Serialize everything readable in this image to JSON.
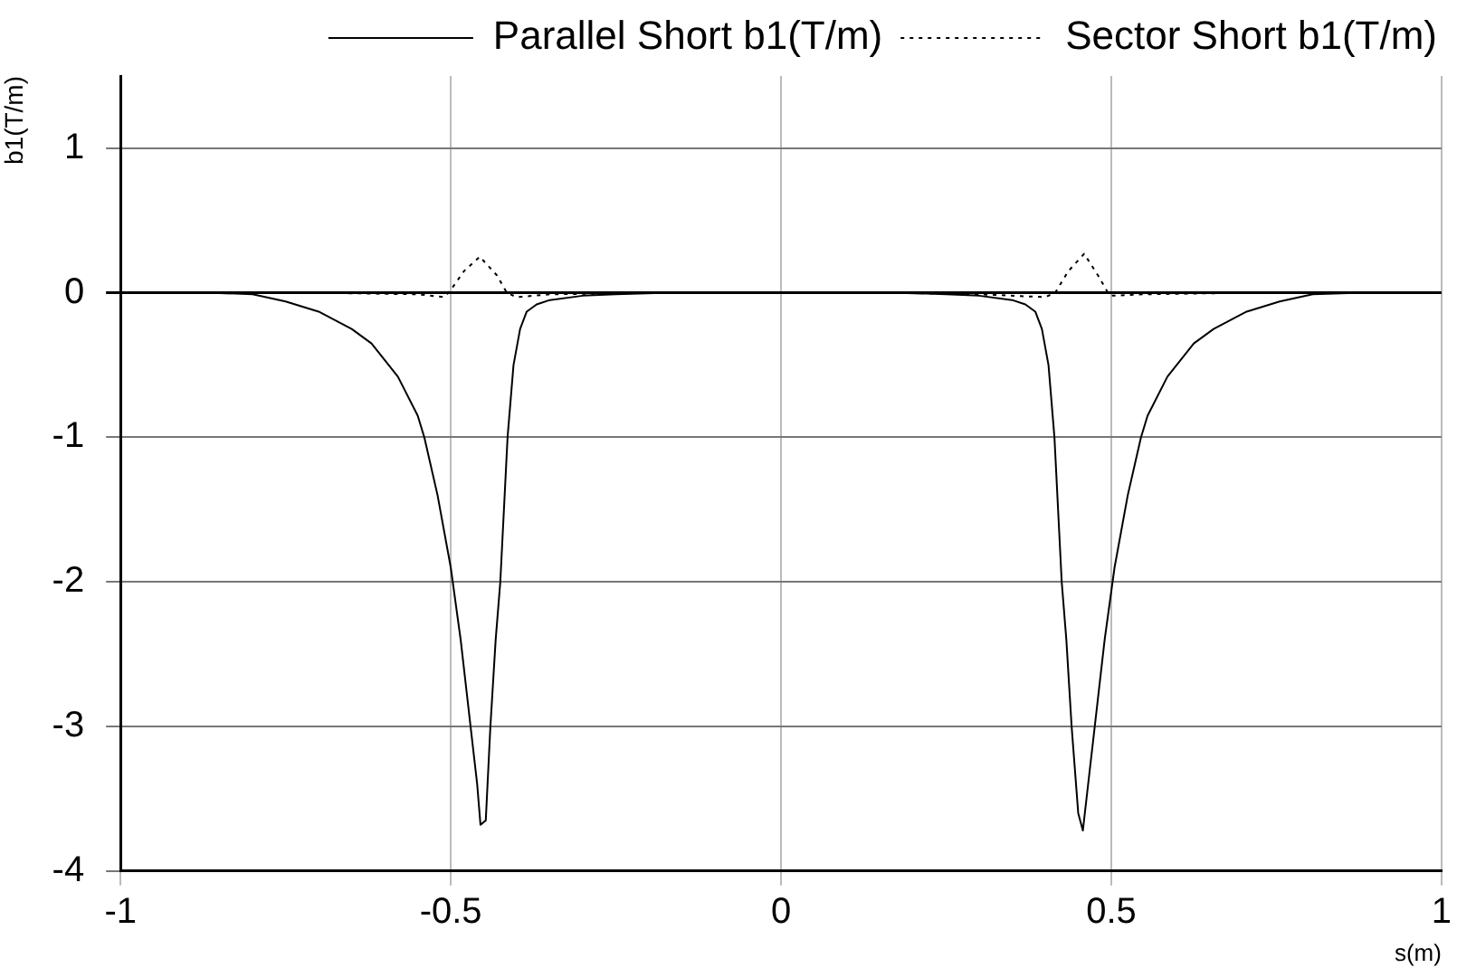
{
  "chart_data": {
    "type": "line",
    "xlabel": "s(m)",
    "ylabel": "b1(T/m)",
    "xlim": [
      -1,
      1
    ],
    "xticks": [
      -1,
      -0.5,
      0,
      0.5,
      1
    ],
    "ylim": [
      -4,
      1.5
    ],
    "yticks": [
      -4,
      -3,
      -2,
      -1,
      0,
      1
    ],
    "grid": true,
    "legend": "top right",
    "marker": "none",
    "series": [
      {
        "name": "Parallel Short b1(T/m)",
        "color": "#000000",
        "line_style": "solid",
        "x": [
          -0.86,
          -0.8,
          -0.75,
          -0.7,
          -0.65,
          -0.62,
          -0.58,
          -0.55,
          -0.54,
          -0.52,
          -0.5,
          -0.485,
          -0.47,
          -0.46,
          -0.455,
          -0.447,
          -0.44,
          -0.432,
          -0.425,
          -0.414,
          -0.405,
          -0.395,
          -0.385,
          -0.37,
          -0.35,
          -0.3,
          -0.25,
          -0.18,
          0,
          0.18,
          0.25,
          0.3,
          0.35,
          0.37,
          0.385,
          0.395,
          0.405,
          0.414,
          0.425,
          0.432,
          0.44,
          0.45,
          0.457,
          0.465,
          0.475,
          0.49,
          0.505,
          0.525,
          0.545,
          0.555,
          0.585,
          0.625,
          0.655,
          0.705,
          0.755,
          0.805,
          0.87
        ],
        "values": [
          0,
          -0.01,
          -0.06,
          -0.13,
          -0.25,
          -0.35,
          -0.58,
          -0.85,
          -1.0,
          -1.4,
          -1.9,
          -2.4,
          -3.0,
          -3.4,
          -3.68,
          -3.65,
          -3.0,
          -2.4,
          -2.0,
          -1.0,
          -0.5,
          -0.25,
          -0.13,
          -0.08,
          -0.05,
          -0.02,
          -0.01,
          0,
          null,
          0,
          -0.01,
          -0.02,
          -0.05,
          -0.08,
          -0.13,
          -0.25,
          -0.5,
          -1.0,
          -2.0,
          -2.4,
          -3.0,
          -3.6,
          -3.72,
          -3.4,
          -3.0,
          -2.4,
          -1.9,
          -1.4,
          -1.0,
          -0.85,
          -0.58,
          -0.35,
          -0.25,
          -0.13,
          -0.06,
          -0.01,
          0
        ]
      },
      {
        "name": "Sector Short b1(T/m)",
        "color": "#000000",
        "line_style": "dotted",
        "x": [
          -0.86,
          -0.7,
          -0.55,
          -0.51,
          -0.5,
          -0.48,
          -0.456,
          -0.43,
          -0.415,
          -0.4,
          -0.35,
          -0.18,
          0,
          0.17,
          0.3,
          0.4,
          0.415,
          0.435,
          0.459,
          0.48,
          0.495,
          0.5,
          0.55,
          0.7,
          0.87
        ],
        "values": [
          0,
          0,
          -0.01,
          -0.03,
          0.02,
          0.15,
          0.25,
          0.12,
          0,
          -0.03,
          -0.01,
          0,
          null,
          0,
          -0.01,
          -0.03,
          0,
          0.15,
          0.27,
          0.12,
          0,
          -0.02,
          -0.01,
          0,
          0
        ]
      }
    ]
  }
}
